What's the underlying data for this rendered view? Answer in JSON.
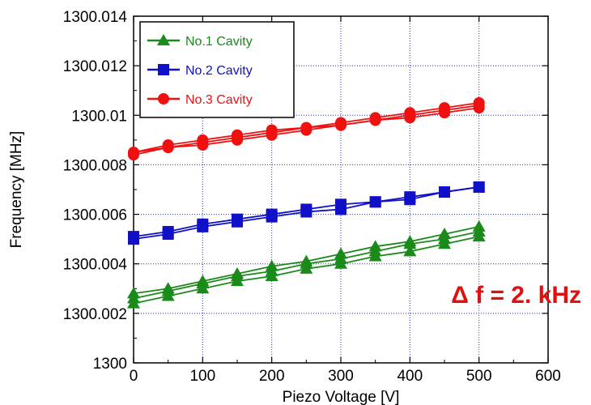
{
  "chart_data": {
    "type": "line",
    "xlabel": "Piezo Voltage [V]",
    "ylabel": "Frequency [MHz]",
    "xlim": [
      0,
      600
    ],
    "ylim": [
      1300,
      1300.014
    ],
    "x_ticks": [
      "0",
      "100",
      "200",
      "300",
      "400",
      "500",
      "600"
    ],
    "y_ticks": [
      "1300",
      "1300.002",
      "1300.004",
      "1300.006",
      "1300.008",
      "1300.01",
      "1300.012",
      "1300.014"
    ],
    "grid": true,
    "legend_position": "top-left",
    "colors": {
      "cavity1": "#1a8a1a",
      "cavity2": "#1010c8",
      "cavity3": "#f01010",
      "annotation": "#e01010"
    },
    "series": [
      {
        "name": "No.1 Cavity",
        "marker": "triangle",
        "x": [
          0,
          50,
          100,
          150,
          200,
          250,
          300,
          350,
          400,
          450,
          500
        ],
        "runs": [
          [
            1300.0028,
            1300.003,
            1300.0033,
            1300.0036,
            1300.0039,
            1300.0041,
            1300.0044,
            1300.0047,
            1300.0049,
            1300.0052,
            1300.0055
          ],
          [
            1300.0026,
            1300.0029,
            1300.0032,
            1300.0035,
            1300.0037,
            1300.004,
            1300.0042,
            1300.0045,
            1300.0048,
            1300.005,
            1300.0053
          ],
          [
            1300.0024,
            1300.0027,
            1300.003,
            1300.0033,
            1300.0035,
            1300.0038,
            1300.004,
            1300.0043,
            1300.0045,
            1300.0048,
            1300.0051
          ]
        ]
      },
      {
        "name": "No.2 Cavity",
        "marker": "square",
        "x": [
          0,
          50,
          100,
          150,
          200,
          250,
          300,
          350,
          400,
          450,
          500
        ],
        "runs": [
          [
            1300.0051,
            1300.0053,
            1300.0056,
            1300.0058,
            1300.006,
            1300.0062,
            1300.0064,
            1300.0065,
            1300.0067,
            1300.0069,
            1300.0071
          ],
          [
            1300.005,
            1300.0052,
            1300.0055,
            1300.0057,
            1300.0059,
            1300.0061,
            1300.0062,
            1300.0065,
            1300.0066,
            1300.0069,
            1300.0071
          ]
        ]
      },
      {
        "name": "No.3 Cavity",
        "marker": "circle",
        "x": [
          0,
          50,
          100,
          150,
          200,
          250,
          300,
          350,
          400,
          450,
          500
        ],
        "runs": [
          [
            1300.0085,
            1300.0088,
            1300.009,
            1300.0092,
            1300.0094,
            1300.0095,
            1300.0097,
            1300.0099,
            1300.0101,
            1300.0103,
            1300.0105
          ],
          [
            1300.0085,
            1300.0087,
            1300.0089,
            1300.0091,
            1300.0093,
            1300.0095,
            1300.0096,
            1300.0098,
            1300.01,
            1300.0102,
            1300.0104
          ],
          [
            1300.0084,
            1300.0087,
            1300.0088,
            1300.009,
            1300.0092,
            1300.0094,
            1300.0096,
            1300.0098,
            1300.0099,
            1300.0101,
            1300.0103
          ]
        ]
      }
    ],
    "annotation": "Δ f = 2. kHz"
  }
}
